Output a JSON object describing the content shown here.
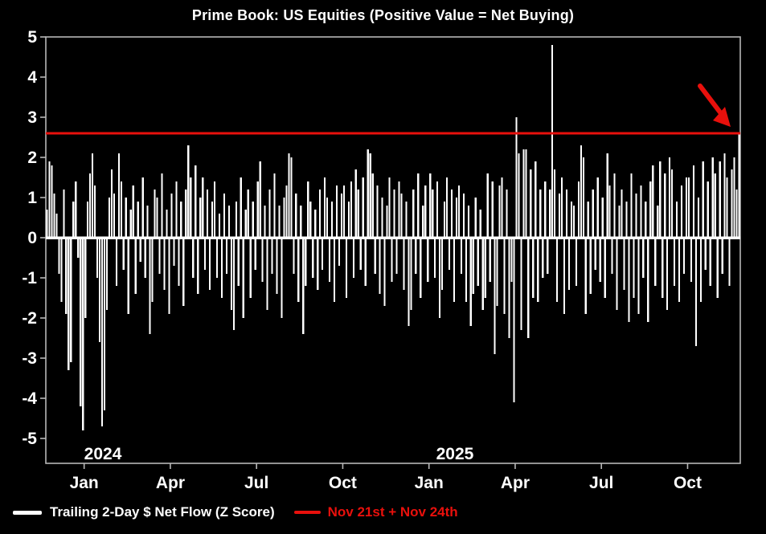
{
  "title": "Prime Book: US Equities (Positive Value = Net Buying)",
  "colors": {
    "background": "#000000",
    "bars": "#ffffff",
    "frame": "#b7b7b7",
    "tick_text": "#ffffff",
    "red": "#e8100c"
  },
  "legend": {
    "series_label": "Trailing 2-Day $ Net Flow (Z Score)",
    "reference_label": "Nov 21st + Nov 24th"
  },
  "chart_data": {
    "type": "bar",
    "title": "Prime Book: US Equities (Positive Value = Net Buying)",
    "xlabel": "",
    "ylabel": "",
    "ylim": [
      -5,
      5
    ],
    "grid": false,
    "legend_position": "bottom-left",
    "yticks": [
      5,
      4,
      3,
      2,
      1,
      0,
      -1,
      -2,
      -3,
      -4,
      -5
    ],
    "xticks": [
      {
        "label": "Jan",
        "index": 16
      },
      {
        "label": "Apr",
        "index": 52
      },
      {
        "label": "Jul",
        "index": 88
      },
      {
        "label": "Oct",
        "index": 124
      },
      {
        "label": "Jan",
        "index": 160
      },
      {
        "label": "Apr",
        "index": 196
      },
      {
        "label": "Jul",
        "index": 232
      },
      {
        "label": "Oct",
        "index": 268
      }
    ],
    "year_labels": [
      {
        "text": "2024",
        "index": 16
      },
      {
        "text": "2025",
        "index": 163
      }
    ],
    "reference_line": {
      "value": 2.6,
      "color": "#e8100c",
      "label": "Nov 21st + Nov 24th"
    },
    "annotation": {
      "type": "arrow",
      "color": "#e8100c",
      "target": "final bar reaching +2.6 at reference line"
    },
    "series": [
      {
        "name": "Trailing 2-Day $ Net Flow (Z Score)",
        "color": "#ffffff",
        "values": [
          0.7,
          1.9,
          1.8,
          1.1,
          0.6,
          -0.9,
          -1.6,
          1.2,
          -1.9,
          -3.3,
          -3.1,
          0.9,
          1.4,
          -0.5,
          -4.2,
          -4.8,
          -2.0,
          0.9,
          1.6,
          2.1,
          1.3,
          -1.0,
          -2.6,
          -4.7,
          -4.3,
          -1.8,
          1.0,
          1.7,
          1.1,
          -1.2,
          2.1,
          1.4,
          -0.8,
          1.0,
          -1.9,
          0.7,
          1.3,
          -1.4,
          0.9,
          -0.6,
          1.5,
          -1.0,
          0.8,
          -2.4,
          -1.6,
          1.2,
          1.0,
          -0.9,
          1.6,
          -1.3,
          0.7,
          -1.9,
          1.1,
          -0.7,
          1.4,
          -1.2,
          0.9,
          -1.7,
          1.2,
          2.3,
          1.5,
          -1.0,
          1.8,
          -1.4,
          1.0,
          1.5,
          -0.8,
          1.2,
          -1.3,
          0.9,
          1.4,
          -1.0,
          0.6,
          -1.5,
          1.1,
          -0.9,
          0.8,
          -1.8,
          -2.3,
          0.9,
          -1.2,
          1.5,
          -2.0,
          0.7,
          1.2,
          -1.5,
          0.9,
          -0.8,
          1.4,
          1.9,
          -1.1,
          0.8,
          -1.8,
          1.2,
          -0.9,
          1.6,
          -1.4,
          0.8,
          -2.0,
          1.0,
          1.3,
          2.1,
          2.0,
          -0.9,
          1.1,
          -1.6,
          0.8,
          -2.4,
          -1.2,
          1.4,
          0.9,
          -1.0,
          0.7,
          -1.3,
          1.2,
          -0.8,
          1.5,
          1.0,
          -1.1,
          0.9,
          -1.6,
          1.3,
          -0.7,
          1.1,
          1.3,
          -1.5,
          0.9,
          1.4,
          -1.0,
          1.7,
          1.2,
          -0.8,
          1.5,
          -1.2,
          2.2,
          2.1,
          1.6,
          -0.9,
          1.3,
          -1.4,
          1.0,
          -1.7,
          0.8,
          1.5,
          -1.1,
          1.2,
          -0.9,
          1.4,
          1.1,
          -1.3,
          0.9,
          -2.2,
          -1.8,
          1.2,
          -0.9,
          1.6,
          -1.5,
          0.8,
          1.3,
          -1.1,
          1.6,
          1.2,
          -1.0,
          1.4,
          -2.0,
          -1.3,
          0.9,
          1.5,
          -0.8,
          1.2,
          -1.6,
          1.0,
          1.3,
          -0.9,
          1.1,
          -1.6,
          0.8,
          -2.2,
          -1.4,
          1.0,
          -1.2,
          0.7,
          -1.8,
          -1.5,
          1.6,
          -1.1,
          1.4,
          -2.9,
          -1.7,
          1.3,
          1.5,
          -1.9,
          1.2,
          -2.5,
          -1.1,
          -4.1,
          3.0,
          2.1,
          -2.3,
          2.2,
          2.2,
          -2.5,
          1.7,
          -1.5,
          1.9,
          -1.6,
          1.2,
          -1.0,
          1.4,
          -0.9,
          1.2,
          4.8,
          1.7,
          -1.6,
          1.1,
          1.5,
          -1.9,
          1.2,
          -1.3,
          0.9,
          0.8,
          -1.2,
          1.4,
          2.3,
          2.0,
          -1.9,
          0.9,
          -1.4,
          1.2,
          -0.8,
          1.5,
          -1.1,
          1.0,
          -1.5,
          2.1,
          1.3,
          -0.9,
          1.6,
          -1.8,
          0.8,
          1.2,
          -1.3,
          0.9,
          -2.1,
          1.6,
          -1.5,
          1.1,
          -1.9,
          1.3,
          -1.0,
          0.9,
          -2.1,
          1.4,
          1.8,
          -1.2,
          0.8,
          1.9,
          -1.5,
          1.6,
          -1.8,
          2.0,
          1.7,
          -1.2,
          0.9,
          -1.6,
          1.3,
          -0.9,
          1.5,
          1.5,
          -1.1,
          1.8,
          -2.7,
          1.0,
          -1.6,
          1.9,
          -0.8,
          1.4,
          -1.2,
          2.0,
          1.6,
          -1.5,
          1.9,
          -0.9,
          2.1,
          1.5,
          -1.2,
          1.7,
          2.0,
          1.2,
          2.6
        ]
      }
    ]
  }
}
